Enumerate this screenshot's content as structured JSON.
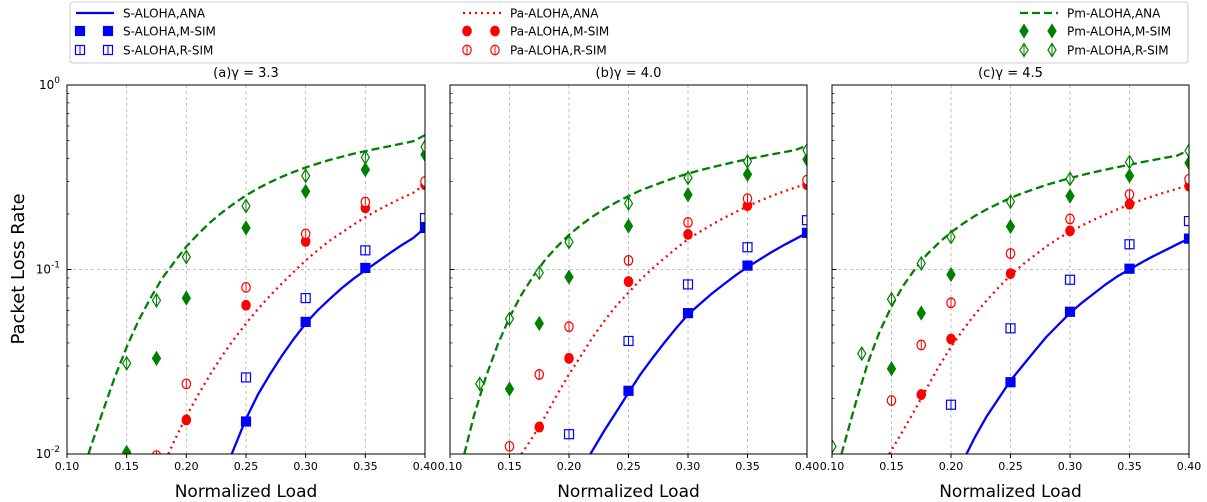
{
  "legend": {
    "entries": [
      {
        "label": "S-ALOHA,ANA",
        "color": "#0000ff",
        "kind": "line",
        "dash": "solid"
      },
      {
        "label": "Pa-ALOHA,ANA",
        "color": "#ff0000",
        "kind": "line",
        "dash": "dotted"
      },
      {
        "label": "Pm-ALOHA,ANA",
        "color": "#008000",
        "kind": "line",
        "dash": "dashed"
      },
      {
        "label": "S-ALOHA,M-SIM",
        "color": "#0000ff",
        "kind": "marker",
        "marker": "square",
        "fill": "solid"
      },
      {
        "label": "Pa-ALOHA,M-SIM",
        "color": "#ff0000",
        "kind": "marker",
        "marker": "circle",
        "fill": "solid"
      },
      {
        "label": "Pm-ALOHA,M-SIM",
        "color": "#008000",
        "kind": "marker",
        "marker": "diamond",
        "fill": "solid"
      },
      {
        "label": "S-ALOHA,R-SIM",
        "color": "#0000ff",
        "kind": "marker",
        "marker": "square",
        "fill": "open"
      },
      {
        "label": "Pa-ALOHA,R-SIM",
        "color": "#ff0000",
        "kind": "marker",
        "marker": "circle",
        "fill": "open"
      },
      {
        "label": "Pm-ALOHA,R-SIM",
        "color": "#008000",
        "kind": "marker",
        "marker": "diamond",
        "fill": "open"
      }
    ]
  },
  "ylabel": "Packet Loss Rate",
  "chart_data": [
    {
      "type": "line",
      "title": "(a)γ = 3.3",
      "xlabel": "Normalized Load",
      "ylabel": "Packet Loss Rate",
      "xlim": [
        0.1,
        0.4
      ],
      "ylim": [
        0.01,
        1
      ],
      "yscale": "log",
      "xticks": [
        "0.10",
        "0.15",
        "0.20",
        "0.25",
        "0.30",
        "0.35",
        "0.40"
      ],
      "yticks": [
        "10^0",
        "10^-1",
        "10^-2"
      ],
      "grid": true,
      "series": [
        {
          "name": "S-ALOHA,ANA",
          "kind": "curve",
          "x": [
            0.238,
            0.25,
            0.26,
            0.27,
            0.28,
            0.29,
            0.3,
            0.31,
            0.32,
            0.33,
            0.34,
            0.35,
            0.36,
            0.37,
            0.38,
            0.39,
            0.4
          ],
          "y": [
            0.01,
            0.0155,
            0.021,
            0.027,
            0.034,
            0.042,
            0.051,
            0.06,
            0.069,
            0.079,
            0.089,
            0.099,
            0.11,
            0.122,
            0.135,
            0.148,
            0.168
          ]
        },
        {
          "name": "Pa-ALOHA,ANA",
          "kind": "curve",
          "x": [
            0.185,
            0.19,
            0.2,
            0.21,
            0.22,
            0.23,
            0.24,
            0.25,
            0.26,
            0.27,
            0.28,
            0.29,
            0.3,
            0.31,
            0.32,
            0.33,
            0.34,
            0.35,
            0.36,
            0.37,
            0.38,
            0.39,
            0.4
          ],
          "y": [
            0.01,
            0.0118,
            0.016,
            0.021,
            0.027,
            0.034,
            0.042,
            0.051,
            0.061,
            0.072,
            0.084,
            0.097,
            0.112,
            0.127,
            0.143,
            0.158,
            0.175,
            0.192,
            0.209,
            0.226,
            0.243,
            0.26,
            0.29
          ]
        },
        {
          "name": "Pm-ALOHA,ANA",
          "kind": "curve",
          "x": [
            0.118,
            0.12,
            0.13,
            0.14,
            0.15,
            0.16,
            0.17,
            0.18,
            0.19,
            0.2,
            0.21,
            0.22,
            0.23,
            0.24,
            0.25,
            0.26,
            0.27,
            0.28,
            0.29,
            0.3,
            0.31,
            0.32,
            0.33,
            0.34,
            0.35,
            0.36,
            0.37,
            0.38,
            0.39,
            0.4
          ],
          "y": [
            0.01,
            0.011,
            0.017,
            0.026,
            0.038,
            0.053,
            0.07,
            0.09,
            0.11,
            0.133,
            0.156,
            0.18,
            0.204,
            0.228,
            0.252,
            0.275,
            0.297,
            0.318,
            0.338,
            0.357,
            0.375,
            0.392,
            0.408,
            0.424,
            0.438,
            0.452,
            0.466,
            0.48,
            0.495,
            0.535
          ]
        },
        {
          "name": "S-ALOHA,M-SIM",
          "kind": "marker",
          "x": [
            0.25,
            0.3,
            0.35,
            0.4
          ],
          "y": [
            0.015,
            0.052,
            0.102,
            0.168
          ]
        },
        {
          "name": "S-ALOHA,R-SIM",
          "kind": "marker",
          "x": [
            0.25,
            0.3,
            0.35,
            0.4
          ],
          "y": [
            0.026,
            0.07,
            0.127,
            0.19
          ]
        },
        {
          "name": "Pa-ALOHA,M-SIM",
          "kind": "marker",
          "x": [
            0.175,
            0.2,
            0.25,
            0.3,
            0.35,
            0.4
          ],
          "y": [
            0.0095,
            0.0153,
            0.064,
            0.142,
            0.216,
            0.288
          ]
        },
        {
          "name": "Pa-ALOHA,R-SIM",
          "kind": "marker",
          "x": [
            0.175,
            0.2,
            0.25,
            0.3,
            0.35,
            0.4
          ],
          "y": [
            0.0098,
            0.024,
            0.08,
            0.156,
            0.232,
            0.3
          ]
        },
        {
          "name": "Pm-ALOHA,M-SIM",
          "kind": "marker",
          "x": [
            0.15,
            0.175,
            0.2,
            0.25,
            0.3,
            0.35,
            0.4
          ],
          "y": [
            0.0102,
            0.033,
            0.07,
            0.168,
            0.265,
            0.348,
            0.42
          ]
        },
        {
          "name": "Pm-ALOHA,R-SIM",
          "kind": "marker",
          "x": [
            0.15,
            0.175,
            0.2,
            0.25,
            0.3,
            0.35,
            0.4
          ],
          "y": [
            0.031,
            0.068,
            0.117,
            0.221,
            0.322,
            0.405,
            0.462
          ]
        }
      ]
    },
    {
      "type": "line",
      "title": "(b)γ = 4.0",
      "xlabel": "Normalized Load",
      "ylabel": "",
      "xlim": [
        0.1,
        0.4
      ],
      "ylim": [
        0.01,
        1
      ],
      "yscale": "log",
      "xticks": [
        "0.10",
        "0.15",
        "0.20",
        "0.25",
        "0.30",
        "0.35",
        "0.40"
      ],
      "yticks": [],
      "grid": true,
      "series": [
        {
          "name": "S-ALOHA,ANA",
          "kind": "curve",
          "x": [
            0.218,
            0.23,
            0.24,
            0.25,
            0.26,
            0.27,
            0.28,
            0.29,
            0.3,
            0.31,
            0.32,
            0.33,
            0.34,
            0.35,
            0.36,
            0.37,
            0.38,
            0.39,
            0.4
          ],
          "y": [
            0.01,
            0.0135,
            0.017,
            0.0215,
            0.027,
            0.033,
            0.04,
            0.048,
            0.057,
            0.065,
            0.074,
            0.083,
            0.093,
            0.103,
            0.113,
            0.124,
            0.135,
            0.146,
            0.158
          ]
        },
        {
          "name": "Pa-ALOHA,ANA",
          "kind": "curve",
          "x": [
            0.16,
            0.17,
            0.18,
            0.19,
            0.2,
            0.21,
            0.22,
            0.23,
            0.24,
            0.25,
            0.26,
            0.27,
            0.28,
            0.29,
            0.3,
            0.31,
            0.32,
            0.33,
            0.34,
            0.35,
            0.36,
            0.37,
            0.38,
            0.39,
            0.4
          ],
          "y": [
            0.01,
            0.0125,
            0.016,
            0.021,
            0.027,
            0.034,
            0.043,
            0.053,
            0.064,
            0.075,
            0.088,
            0.101,
            0.115,
            0.13,
            0.146,
            0.16,
            0.175,
            0.19,
            0.205,
            0.22,
            0.235,
            0.25,
            0.264,
            0.278,
            0.292
          ]
        },
        {
          "name": "Pm-ALOHA,ANA",
          "kind": "curve",
          "x": [
            0.112,
            0.12,
            0.13,
            0.14,
            0.15,
            0.16,
            0.17,
            0.18,
            0.19,
            0.2,
            0.21,
            0.22,
            0.23,
            0.24,
            0.25,
            0.26,
            0.27,
            0.28,
            0.29,
            0.3,
            0.31,
            0.32,
            0.33,
            0.34,
            0.35,
            0.36,
            0.37,
            0.38,
            0.39,
            0.4
          ],
          "y": [
            0.01,
            0.016,
            0.026,
            0.039,
            0.055,
            0.073,
            0.092,
            0.113,
            0.133,
            0.154,
            0.174,
            0.194,
            0.213,
            0.232,
            0.25,
            0.268,
            0.284,
            0.3,
            0.316,
            0.331,
            0.345,
            0.358,
            0.371,
            0.384,
            0.396,
            0.408,
            0.42,
            0.432,
            0.444,
            0.47
          ]
        },
        {
          "name": "S-ALOHA,M-SIM",
          "kind": "marker",
          "x": [
            0.25,
            0.3,
            0.35,
            0.4
          ],
          "y": [
            0.022,
            0.058,
            0.105,
            0.158
          ]
        },
        {
          "name": "S-ALOHA,R-SIM",
          "kind": "marker",
          "x": [
            0.2,
            0.25,
            0.3,
            0.35,
            0.4
          ],
          "y": [
            0.0128,
            0.041,
            0.083,
            0.132,
            0.185
          ]
        },
        {
          "name": "Pa-ALOHA,M-SIM",
          "kind": "marker",
          "x": [
            0.175,
            0.2,
            0.25,
            0.3,
            0.35,
            0.4
          ],
          "y": [
            0.014,
            0.033,
            0.086,
            0.155,
            0.222,
            0.288
          ]
        },
        {
          "name": "Pa-ALOHA,R-SIM",
          "kind": "marker",
          "x": [
            0.15,
            0.175,
            0.2,
            0.25,
            0.3,
            0.35,
            0.4
          ],
          "y": [
            0.011,
            0.027,
            0.049,
            0.112,
            0.18,
            0.242,
            0.305
          ]
        },
        {
          "name": "Pm-ALOHA,M-SIM",
          "kind": "marker",
          "x": [
            0.15,
            0.175,
            0.2,
            0.25,
            0.3,
            0.35,
            0.4
          ],
          "y": [
            0.0225,
            0.051,
            0.091,
            0.172,
            0.254,
            0.328,
            0.395
          ]
        },
        {
          "name": "Pm-ALOHA,R-SIM",
          "kind": "marker",
          "x": [
            0.125,
            0.15,
            0.175,
            0.2,
            0.25,
            0.3,
            0.35,
            0.4
          ],
          "y": [
            0.024,
            0.054,
            0.096,
            0.141,
            0.228,
            0.314,
            0.385,
            0.442
          ]
        }
      ]
    },
    {
      "type": "line",
      "title": "(c)γ = 4.5",
      "xlabel": "Normalized Load",
      "ylabel": "",
      "xlim": [
        0.1,
        0.4
      ],
      "ylim": [
        0.01,
        1
      ],
      "yscale": "log",
      "xticks": [
        "0.10",
        "0.15",
        "0.20",
        "0.25",
        "0.30",
        "0.35",
        "0.40"
      ],
      "yticks": [],
      "grid": true,
      "series": [
        {
          "name": "S-ALOHA,ANA",
          "kind": "curve",
          "x": [
            0.213,
            0.22,
            0.23,
            0.24,
            0.25,
            0.26,
            0.27,
            0.28,
            0.29,
            0.3,
            0.31,
            0.32,
            0.33,
            0.34,
            0.35,
            0.36,
            0.37,
            0.38,
            0.39,
            0.4
          ],
          "y": [
            0.01,
            0.0123,
            0.016,
            0.02,
            0.025,
            0.03,
            0.036,
            0.043,
            0.05,
            0.058,
            0.066,
            0.074,
            0.083,
            0.092,
            0.1,
            0.109,
            0.118,
            0.127,
            0.137,
            0.147
          ]
        },
        {
          "name": "Pa-ALOHA,ANA",
          "kind": "curve",
          "x": [
            0.148,
            0.16,
            0.17,
            0.18,
            0.19,
            0.2,
            0.21,
            0.22,
            0.23,
            0.24,
            0.25,
            0.26,
            0.27,
            0.28,
            0.29,
            0.3,
            0.31,
            0.32,
            0.33,
            0.34,
            0.35,
            0.36,
            0.37,
            0.38,
            0.39,
            0.4
          ],
          "y": [
            0.01,
            0.0135,
            0.0175,
            0.023,
            0.03,
            0.038,
            0.047,
            0.057,
            0.068,
            0.08,
            0.093,
            0.106,
            0.119,
            0.133,
            0.147,
            0.16,
            0.173,
            0.186,
            0.199,
            0.212,
            0.225,
            0.238,
            0.25,
            0.262,
            0.274,
            0.286
          ]
        },
        {
          "name": "Pm-ALOHA,ANA",
          "kind": "curve",
          "x": [
            0.108,
            0.12,
            0.13,
            0.14,
            0.15,
            0.16,
            0.17,
            0.18,
            0.19,
            0.2,
            0.21,
            0.22,
            0.23,
            0.24,
            0.25,
            0.26,
            0.27,
            0.28,
            0.29,
            0.3,
            0.31,
            0.32,
            0.33,
            0.34,
            0.35,
            0.36,
            0.37,
            0.38,
            0.39,
            0.4
          ],
          "y": [
            0.01,
            0.019,
            0.031,
            0.046,
            0.063,
            0.082,
            0.101,
            0.121,
            0.14,
            0.159,
            0.177,
            0.195,
            0.212,
            0.228,
            0.244,
            0.259,
            0.273,
            0.287,
            0.3,
            0.313,
            0.325,
            0.337,
            0.348,
            0.359,
            0.37,
            0.381,
            0.392,
            0.403,
            0.414,
            0.445
          ]
        },
        {
          "name": "S-ALOHA,M-SIM",
          "kind": "marker",
          "x": [
            0.25,
            0.3,
            0.35,
            0.4
          ],
          "y": [
            0.0245,
            0.059,
            0.101,
            0.147
          ]
        },
        {
          "name": "S-ALOHA,R-SIM",
          "kind": "marker",
          "x": [
            0.2,
            0.25,
            0.3,
            0.35,
            0.4
          ],
          "y": [
            0.0185,
            0.048,
            0.088,
            0.137,
            0.183
          ]
        },
        {
          "name": "Pa-ALOHA,M-SIM",
          "kind": "marker",
          "x": [
            0.175,
            0.2,
            0.25,
            0.3,
            0.35,
            0.4
          ],
          "y": [
            0.021,
            0.042,
            0.095,
            0.162,
            0.226,
            0.283
          ]
        },
        {
          "name": "Pa-ALOHA,R-SIM",
          "kind": "marker",
          "x": [
            0.15,
            0.175,
            0.2,
            0.25,
            0.3,
            0.35,
            0.4
          ],
          "y": [
            0.0195,
            0.039,
            0.066,
            0.122,
            0.188,
            0.255,
            0.308
          ]
        },
        {
          "name": "Pm-ALOHA,M-SIM",
          "kind": "marker",
          "x": [
            0.15,
            0.175,
            0.2,
            0.25,
            0.3,
            0.35,
            0.4
          ],
          "y": [
            0.029,
            0.058,
            0.094,
            0.171,
            0.25,
            0.322,
            0.378
          ]
        },
        {
          "name": "Pm-ALOHA,R-SIM",
          "kind": "marker",
          "x": [
            0.1,
            0.125,
            0.15,
            0.175,
            0.2,
            0.25,
            0.3,
            0.35,
            0.4
          ],
          "y": [
            0.011,
            0.035,
            0.069,
            0.108,
            0.15,
            0.233,
            0.31,
            0.382,
            0.44
          ]
        }
      ]
    }
  ]
}
